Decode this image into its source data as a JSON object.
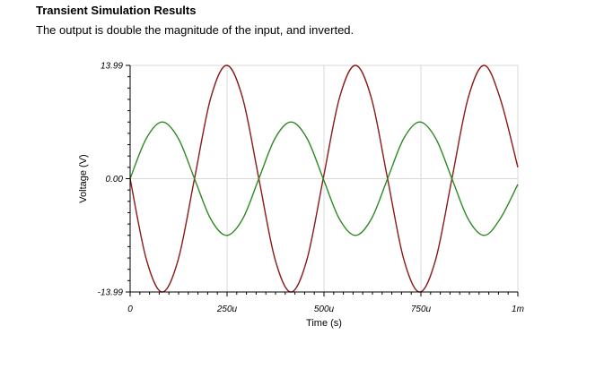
{
  "header": {
    "title": "Transient Simulation Results",
    "subtitle": "The output is double the magnitude of the input, and inverted."
  },
  "chart_data": {
    "type": "line",
    "xlabel": "Time (s)",
    "ylabel": "Voltage (V)",
    "xlim": [
      0,
      0.001
    ],
    "ylim": [
      -13.99,
      13.99
    ],
    "xticks": [
      {
        "value": 0,
        "label": "0"
      },
      {
        "value": 0.00025,
        "label": "250u"
      },
      {
        "value": 0.0005,
        "label": "500u"
      },
      {
        "value": 0.00075,
        "label": "750u"
      },
      {
        "value": 0.001,
        "label": "1m"
      }
    ],
    "yticks": [
      {
        "value": 13.99,
        "label": "13.99"
      },
      {
        "value": 0,
        "label": "0.00"
      },
      {
        "value": -13.99,
        "label": "-13.99"
      }
    ],
    "grid": true,
    "series": [
      {
        "color": "#8b1a1a",
        "x": [
          0,
          4.15e-05,
          8.3e-05,
          0.0001245,
          0.000166,
          0.0002075,
          0.000249,
          0.0002905,
          0.000332,
          0.0003735,
          0.000415,
          0.0004565,
          0.000498,
          0.0005395,
          0.000581,
          0.0006225,
          0.000664,
          0.0007055,
          0.000747,
          0.0007885,
          0.00083,
          0.0008715,
          0.000913,
          0.0009545,
          0.001
        ],
        "y": [
          0,
          -9.9,
          -13.99,
          -9.9,
          0,
          9.9,
          13.99,
          9.9,
          0,
          -9.9,
          -13.99,
          -9.9,
          0,
          9.9,
          13.99,
          9.9,
          0,
          -9.9,
          -13.99,
          -9.9,
          0,
          9.9,
          13.99,
          9.9,
          1.4
        ]
      },
      {
        "color": "#2e8b22",
        "x": [
          0,
          4.15e-05,
          8.3e-05,
          0.0001245,
          0.000166,
          0.0002075,
          0.000249,
          0.0002905,
          0.000332,
          0.0003735,
          0.000415,
          0.0004565,
          0.000498,
          0.0005395,
          0.000581,
          0.0006225,
          0.000664,
          0.0007055,
          0.000747,
          0.0007885,
          0.00083,
          0.0008715,
          0.000913,
          0.0009545,
          0.001
        ],
        "y": [
          0,
          4.95,
          7.0,
          4.95,
          0,
          -4.95,
          -7.0,
          -4.95,
          0,
          4.95,
          7.0,
          4.95,
          0,
          -4.95,
          -7.0,
          -4.95,
          0,
          4.95,
          7.0,
          4.95,
          0,
          -4.95,
          -7.0,
          -4.95,
          -0.7
        ]
      }
    ]
  }
}
